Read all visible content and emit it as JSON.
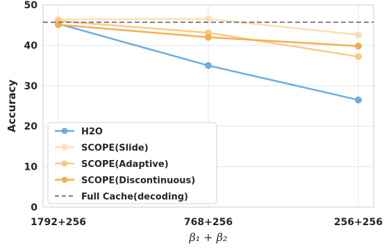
{
  "chart_data": {
    "type": "line",
    "categories": [
      "1792+256",
      "768+256",
      "256+256"
    ],
    "xlabel": "β₁ + β₂",
    "ylabel": "Accuracy",
    "ylim": [
      0,
      50
    ],
    "yticks": [
      0,
      10,
      20,
      30,
      40,
      50
    ],
    "grid": true,
    "legend_position": "lower-left",
    "series": [
      {
        "name": "H2O",
        "values": [
          45.3,
          35.0,
          26.5
        ],
        "color": "#6aaee0",
        "style": "solid",
        "marker": true
      },
      {
        "name": "SCOPE(Slide)",
        "values": [
          46.4,
          46.5,
          42.6
        ],
        "color": "#fbdfb0",
        "style": "solid",
        "marker": true
      },
      {
        "name": "SCOPE(Adaptive)",
        "values": [
          46.0,
          43.1,
          37.2
        ],
        "color": "#f8cb82",
        "style": "solid",
        "marker": true
      },
      {
        "name": "SCOPE(Discontinuous)",
        "values": [
          45.1,
          42.0,
          39.8
        ],
        "color": "#f5ad4f",
        "style": "solid",
        "marker": true
      },
      {
        "name": "Full Cache(decoding)",
        "values": [
          45.7,
          45.7,
          45.7
        ],
        "color": "#7f7f7f",
        "style": "dashed",
        "marker": false,
        "horizontal_line": true
      }
    ]
  }
}
